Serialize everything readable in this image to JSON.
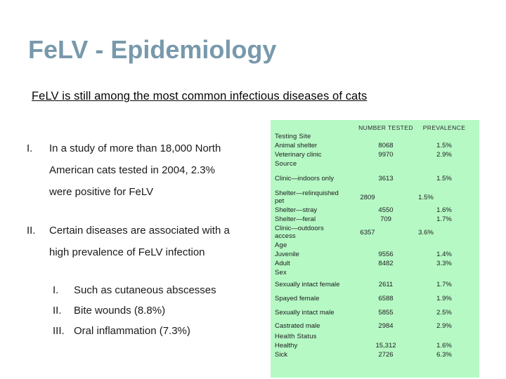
{
  "slide": {
    "title": "FeLV - Epidemiology",
    "subtitle": "FeLV is still among the most common infectious diseases of cats"
  },
  "colors": {
    "title_text": "#7899ac",
    "table_background": "#b6f9c5"
  },
  "main_list": {
    "items": [
      {
        "numeral": "I.",
        "text": "In a study of more than 18,000 North American cats tested in 2004, 2.3% were positive for FeLV",
        "lines": [
          "In a study of more than 18,000 North",
          "American cats tested in 2004, 2.3%",
          "were positive for FeLV"
        ]
      },
      {
        "numeral": "II.",
        "text": "Certain diseases are associated with a high prevalence of FeLV infection",
        "lines": [
          "Certain diseases are associated with a",
          "high prevalence of FeLV infection"
        ]
      }
    ]
  },
  "sub_list": {
    "items": [
      {
        "numeral": "I.",
        "text": "Such as cutaneous abscesses"
      },
      {
        "numeral": "II.",
        "text": "Bite wounds (8.8%)"
      },
      {
        "numeral": "III.",
        "text": "Oral inflammation (7.3%)"
      }
    ]
  },
  "table": {
    "headers": {
      "number_tested": "NUMBER TESTED",
      "prevalence": "PREVALENCE"
    },
    "rows": [
      {
        "type": "group",
        "label": "Testing Site"
      },
      {
        "type": "data",
        "label": "Animal shelter",
        "tested": "8068",
        "prevalence": "1.5%"
      },
      {
        "type": "data",
        "label": "Veterinary clinic",
        "tested": "9970",
        "prevalence": "2.9%"
      },
      {
        "type": "group",
        "label": "Source"
      },
      {
        "type": "data",
        "label": "Clinic—indoors only",
        "tested": "3613",
        "prevalence": "1.5%"
      },
      {
        "type": "data",
        "label": "Shelter—relinquished pet",
        "tested": "2809",
        "prevalence": "1.5%"
      },
      {
        "type": "data",
        "label": "Shelter—stray",
        "tested": "4550",
        "prevalence": "1.6%"
      },
      {
        "type": "data",
        "label": "Shelter—feral",
        "tested": "709",
        "prevalence": "1.7%"
      },
      {
        "type": "data",
        "label": "Clinic—outdoors access",
        "tested": "6357",
        "prevalence": "3.6%"
      },
      {
        "type": "group",
        "label": "Age"
      },
      {
        "type": "data",
        "label": "Juvenile",
        "tested": "9556",
        "prevalence": "1.4%"
      },
      {
        "type": "data",
        "label": "Adult",
        "tested": "8482",
        "prevalence": "3.3%"
      },
      {
        "type": "group",
        "label": "Sex"
      },
      {
        "type": "data",
        "label": "Sexually intact female",
        "tested": "2611",
        "prevalence": "1.7%"
      },
      {
        "type": "data",
        "label": "Spayed female",
        "tested": "6588",
        "prevalence": "1.9%"
      },
      {
        "type": "data",
        "label": "Sexually intact male",
        "tested": "5855",
        "prevalence": "2.5%"
      },
      {
        "type": "data",
        "label": "Castrated male",
        "tested": "2984",
        "prevalence": "2.9%"
      },
      {
        "type": "group",
        "label": "Health Status"
      },
      {
        "type": "data",
        "label": "Healthy",
        "tested": "15,312",
        "prevalence": "1.6%"
      },
      {
        "type": "data",
        "label": "Sick",
        "tested": "2726",
        "prevalence": "6.3%"
      }
    ]
  }
}
